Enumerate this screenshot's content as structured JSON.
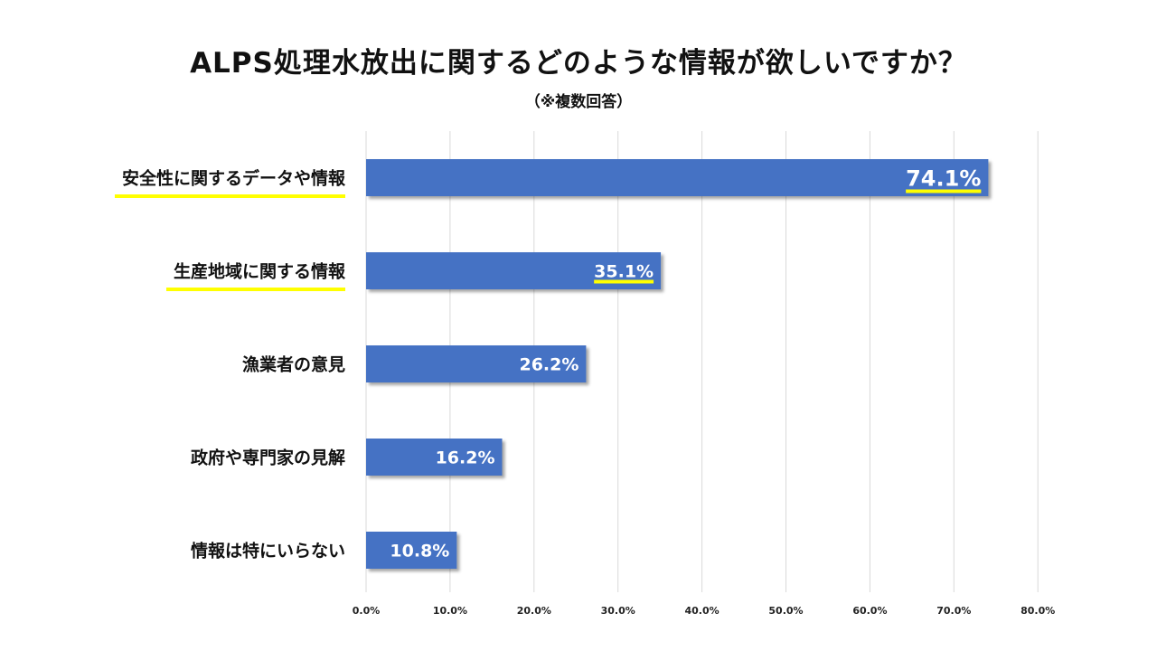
{
  "chart_data": {
    "type": "bar",
    "orientation": "horizontal",
    "title": "ALPS処理水放出に関するどのような情報が欲しいですか？",
    "subtitle": "（※複数回答）",
    "categories": [
      "安全性に関するデータや情報",
      "生産地域に関する情報",
      "漁業者の意見",
      "政府や専門家の見解",
      "情報は特にいらない"
    ],
    "values": [
      74.1,
      35.1,
      26.2,
      16.2,
      10.8
    ],
    "value_labels": [
      "74.1%",
      "35.1%",
      "26.2%",
      "16.2%",
      "10.8%"
    ],
    "highlighted": [
      true,
      true,
      false,
      false,
      false
    ],
    "xlim": [
      0,
      80
    ],
    "xticks": [
      0,
      10,
      20,
      30,
      40,
      50,
      60,
      70,
      80
    ],
    "xtick_labels": [
      "0.0%",
      "10.0%",
      "20.0%",
      "30.0%",
      "40.0%",
      "50.0%",
      "60.0%",
      "70.0%",
      "80.0%"
    ],
    "grid": true,
    "bar_color": "#4472C4",
    "highlight_color": "#FFFF00"
  }
}
